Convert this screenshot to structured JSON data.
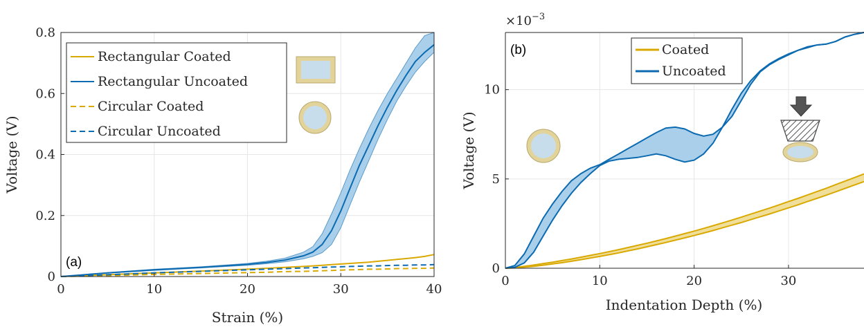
{
  "colors": {
    "coated": "#D9A900",
    "uncoated": "#0B6AB0",
    "band": "#A9CFEA",
    "band_coated": "#F0DF9A",
    "icon_fill": "#C8DDEB",
    "icon_ring": "#E2D39A"
  },
  "chart_data": [
    {
      "type": "line",
      "panel_label": "(a)",
      "xlabel": "Strain (%)",
      "ylabel": "Voltage (V)",
      "xlim": [
        0,
        40
      ],
      "ylim": [
        0,
        0.8
      ],
      "xticks": [
        "0",
        "10",
        "20",
        "30",
        "40"
      ],
      "yticks": [
        "0",
        "0.2",
        "0.4",
        "0.6",
        "0.8"
      ],
      "grid": true,
      "legend_position": "top-left",
      "x": [
        0,
        5,
        10,
        15,
        20,
        22,
        24,
        26,
        27,
        28,
        29,
        30,
        31,
        32,
        33,
        34,
        35,
        36,
        37,
        38,
        39,
        40
      ],
      "series": [
        {
          "name": "Rectangular Coated",
          "style": "solid",
          "color": "coated",
          "values": [
            0,
            0.006,
            0.012,
            0.018,
            0.024,
            0.027,
            0.03,
            0.033,
            0.035,
            0.037,
            0.039,
            0.041,
            0.043,
            0.045,
            0.047,
            0.05,
            0.053,
            0.056,
            0.059,
            0.062,
            0.066,
            0.072
          ]
        },
        {
          "name": "Rectangular Uncoated",
          "style": "solid",
          "color": "uncoated",
          "values": [
            0,
            0.012,
            0.022,
            0.03,
            0.04,
            0.046,
            0.054,
            0.068,
            0.08,
            0.105,
            0.15,
            0.215,
            0.29,
            0.365,
            0.43,
            0.495,
            0.555,
            0.61,
            0.66,
            0.705,
            0.735,
            0.76
          ],
          "band_lower": [
            0,
            0.011,
            0.02,
            0.028,
            0.037,
            0.042,
            0.048,
            0.058,
            0.066,
            0.078,
            0.105,
            0.16,
            0.235,
            0.31,
            0.38,
            0.45,
            0.515,
            0.575,
            0.625,
            0.67,
            0.705,
            0.735
          ],
          "band_upper": [
            0,
            0.013,
            0.024,
            0.032,
            0.043,
            0.05,
            0.06,
            0.08,
            0.098,
            0.14,
            0.205,
            0.275,
            0.35,
            0.42,
            0.485,
            0.545,
            0.6,
            0.65,
            0.7,
            0.75,
            0.79,
            0.8
          ]
        },
        {
          "name": "Circular Coated",
          "style": "dashed",
          "color": "coated",
          "values": [
            0,
            0.003,
            0.007,
            0.01,
            0.013,
            0.014,
            0.016,
            0.017,
            0.018,
            0.019,
            0.02,
            0.021,
            0.022,
            0.023,
            0.024,
            0.024,
            0.025,
            0.026,
            0.026,
            0.027,
            0.027,
            0.028
          ]
        },
        {
          "name": "Circular Uncoated",
          "style": "dashed",
          "color": "uncoated",
          "values": [
            0,
            0.006,
            0.012,
            0.017,
            0.022,
            0.024,
            0.026,
            0.028,
            0.029,
            0.03,
            0.031,
            0.032,
            0.033,
            0.034,
            0.035,
            0.035,
            0.036,
            0.037,
            0.037,
            0.038,
            0.038,
            0.039
          ]
        }
      ]
    },
    {
      "type": "line",
      "panel_label": "(b)",
      "xlabel": "Indentation Depth (%)",
      "ylabel": "Voltage (V)",
      "exponent_label": "×10",
      "exponent_power": "−3",
      "xlim": [
        0,
        38
      ],
      "ylim": [
        0,
        13.2
      ],
      "xticks": [
        "0",
        "10",
        "20",
        "30"
      ],
      "yticks": [
        "0",
        "5",
        "10"
      ],
      "grid": true,
      "legend_position": "top",
      "x": [
        0,
        1,
        2,
        3,
        4,
        5,
        6,
        7,
        8,
        9,
        10,
        11,
        12,
        13,
        14,
        15,
        16,
        17,
        18,
        19,
        20,
        21,
        22,
        23,
        24,
        25,
        26,
        27,
        28,
        29,
        30,
        31,
        32,
        33,
        34,
        35,
        36,
        37,
        38
      ],
      "series": [
        {
          "name": "Coated",
          "color": "coated",
          "band_lower": [
            0,
            0.02,
            0.06,
            0.11,
            0.17,
            0.24,
            0.31,
            0.39,
            0.48,
            0.57,
            0.66,
            0.76,
            0.86,
            0.97,
            1.08,
            1.2,
            1.32,
            1.44,
            1.57,
            1.7,
            1.83,
            1.97,
            2.11,
            2.26,
            2.41,
            2.56,
            2.72,
            2.88,
            3.04,
            3.21,
            3.38,
            3.55,
            3.73,
            3.91,
            4.09,
            4.28,
            4.47,
            4.66,
            4.85
          ],
          "band_upper": [
            0,
            0.05,
            0.11,
            0.18,
            0.26,
            0.34,
            0.43,
            0.52,
            0.62,
            0.72,
            0.82,
            0.93,
            1.04,
            1.16,
            1.28,
            1.4,
            1.53,
            1.66,
            1.8,
            1.94,
            2.08,
            2.23,
            2.38,
            2.54,
            2.7,
            2.86,
            3.03,
            3.2,
            3.37,
            3.55,
            3.73,
            3.91,
            4.1,
            4.29,
            4.48,
            4.68,
            4.88,
            5.08,
            5.28
          ]
        },
        {
          "name": "Uncoated",
          "color": "uncoated",
          "band_lower": [
            0,
            0.05,
            0.3,
            0.9,
            1.8,
            2.7,
            3.5,
            4.2,
            4.8,
            5.3,
            5.75,
            6.0,
            6.1,
            6.15,
            6.2,
            6.3,
            6.4,
            6.3,
            6.1,
            5.95,
            6.05,
            6.4,
            7.0,
            7.9,
            8.9,
            9.8,
            10.5,
            11.05,
            11.45,
            11.75,
            12.0,
            12.2,
            12.4,
            12.5,
            12.55,
            12.7,
            12.95,
            13.1,
            13.2
          ],
          "band_upper": [
            0,
            0.15,
            0.8,
            1.8,
            2.8,
            3.6,
            4.3,
            4.9,
            5.3,
            5.6,
            5.8,
            6.1,
            6.4,
            6.7,
            7.0,
            7.3,
            7.6,
            7.85,
            7.9,
            7.8,
            7.55,
            7.4,
            7.5,
            7.9,
            8.5,
            9.4,
            10.3,
            11.0,
            11.4,
            11.7,
            11.95,
            12.2,
            12.35,
            12.5,
            12.55,
            12.7,
            12.95,
            13.1,
            13.2
          ]
        }
      ]
    }
  ]
}
